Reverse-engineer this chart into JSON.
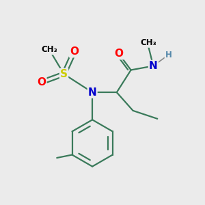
{
  "bg_color": "#ebebeb",
  "bond_color": "#3a7a5a",
  "bond_width": 1.6,
  "atom_colors": {
    "O": "#ff0000",
    "N": "#0000cc",
    "S": "#cccc00",
    "C": "#000000",
    "H": "#5588aa"
  },
  "font_size_atom": 10,
  "font_size_label": 8.5,
  "font_size_methyl": 7.5
}
